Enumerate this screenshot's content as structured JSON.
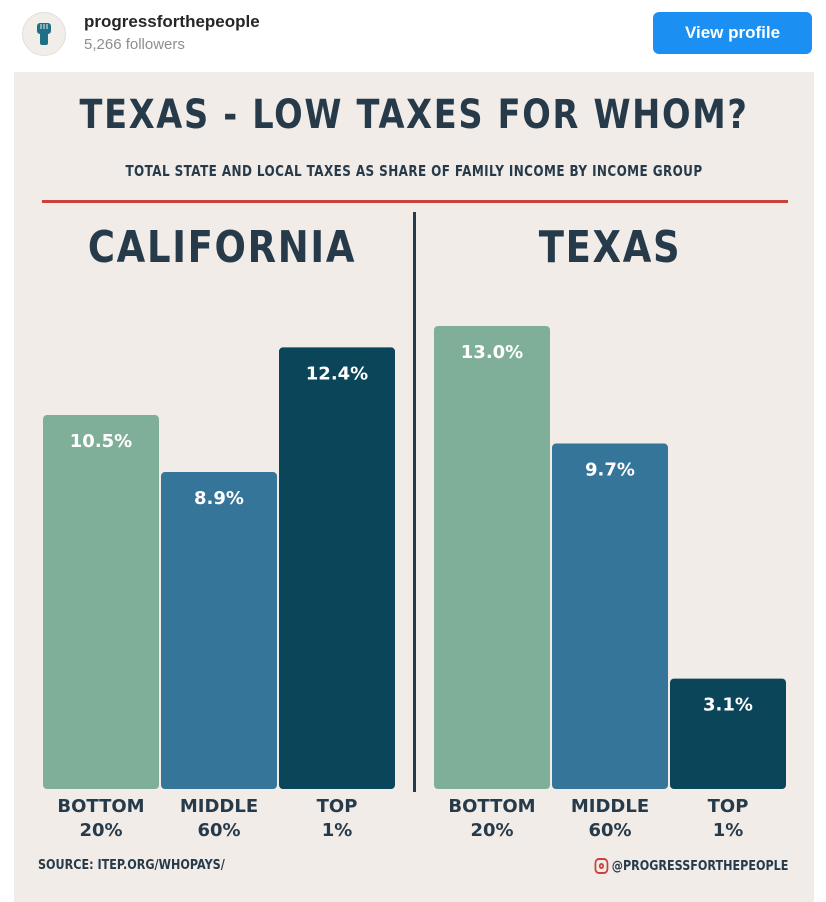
{
  "header": {
    "username": "progressforthepeople",
    "followers": "5,266 followers",
    "view_profile_label": "View profile",
    "avatar_icon": "raised-fist-icon"
  },
  "poster": {
    "title": "TEXAS - LOW TAXES FOR WHOM?",
    "subtitle": "TOTAL STATE AND LOCAL TAXES AS SHARE OF FAMILY INCOME BY INCOME GROUP",
    "source": "SOURCE: ITEP.ORG/WHOPAYS/",
    "handle": "@PROGRESSFORTHEPEOPLE",
    "handle_icon": "instagram-icon"
  },
  "colors": {
    "bottom": "#80af99",
    "middle": "#35759a",
    "top": "#0b4559",
    "ink": "#263a4a",
    "rule": "#c8423e",
    "background": "#f1ece7"
  },
  "chart_data": [
    {
      "type": "bar",
      "title": "CALIFORNIA",
      "categories": [
        [
          "BOTTOM",
          "20%"
        ],
        [
          "MIDDLE",
          "60%"
        ],
        [
          "TOP",
          "1%"
        ]
      ],
      "values": [
        10.5,
        8.9,
        12.4
      ],
      "value_labels": [
        "10.5%",
        "8.9%",
        "12.4%"
      ],
      "ylim": [
        0,
        13.0
      ]
    },
    {
      "type": "bar",
      "title": "TEXAS",
      "categories": [
        [
          "BOTTOM",
          "20%"
        ],
        [
          "MIDDLE",
          "60%"
        ],
        [
          "TOP",
          "1%"
        ]
      ],
      "values": [
        13.0,
        9.7,
        3.1
      ],
      "value_labels": [
        "13.0%",
        "9.7%",
        "3.1%"
      ],
      "ylim": [
        0,
        13.0
      ]
    }
  ]
}
